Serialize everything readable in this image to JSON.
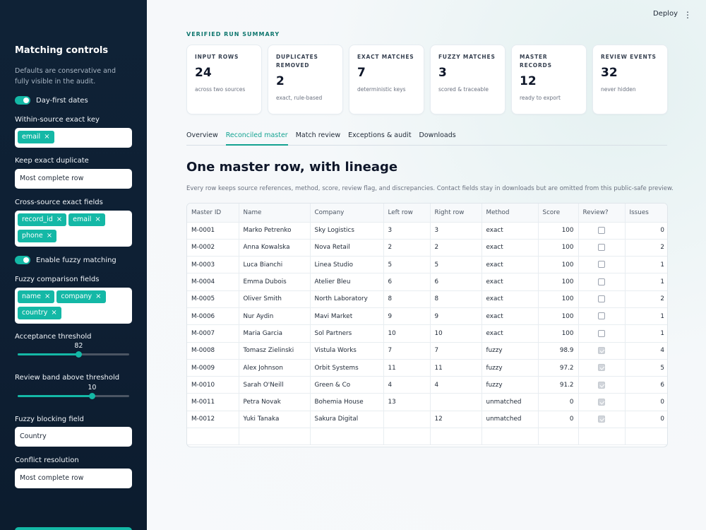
{
  "sidebar": {
    "title": "Matching controls",
    "description": "Defaults are conservative and fully visible in the audit.",
    "day_first": {
      "label": "Day-first dates",
      "on": true
    },
    "within_key": {
      "label": "Within-source exact key",
      "chips": [
        "email"
      ]
    },
    "keep_duplicate": {
      "label": "Keep exact duplicate",
      "value": "Most complete row"
    },
    "cross_fields": {
      "label": "Cross-source exact fields",
      "chips": [
        "record_id",
        "email",
        "phone"
      ]
    },
    "fuzzy_toggle": {
      "label": "Enable fuzzy matching",
      "on": true
    },
    "fuzzy_fields": {
      "label": "Fuzzy comparison fields",
      "chips": [
        "name",
        "company",
        "country"
      ]
    },
    "threshold": {
      "label": "Acceptance threshold",
      "value": "82",
      "fraction": 0.547
    },
    "review_band": {
      "label": "Review band above threshold",
      "value": "10",
      "fraction": 0.667
    },
    "blocking": {
      "label": "Fuzzy blocking field",
      "value": "Country"
    },
    "conflict": {
      "label": "Conflict resolution",
      "value": "Most complete row"
    }
  },
  "header": {
    "deploy": "Deploy",
    "menu_icon": "kebab-icon"
  },
  "summary": {
    "eyebrow": "VERIFIED RUN SUMMARY",
    "cards": [
      {
        "label": "INPUT ROWS",
        "value": "24",
        "sub": "across two sources"
      },
      {
        "label": "DUPLICATES REMOVED",
        "value": "2",
        "sub": "exact, rule-based"
      },
      {
        "label": "EXACT MATCHES",
        "value": "7",
        "sub": "deterministic keys"
      },
      {
        "label": "FUZZY MATCHES",
        "value": "3",
        "sub": "scored & traceable"
      },
      {
        "label": "MASTER RECORDS",
        "value": "12",
        "sub": "ready to export"
      },
      {
        "label": "REVIEW EVENTS",
        "value": "32",
        "sub": "never hidden"
      }
    ]
  },
  "tabs": [
    "Overview",
    "Reconciled master",
    "Match review",
    "Exceptions & audit",
    "Downloads"
  ],
  "active_tab": 1,
  "section": {
    "title": "One master row, with lineage",
    "subtitle": "Every row keeps source references, method, score, review flag, and discrepancies. Contact fields stay in downloads but are omitted from this public-safe preview."
  },
  "table": {
    "columns": [
      "Master ID",
      "Name",
      "Company",
      "Left row",
      "Right row",
      "Method",
      "Score",
      "Review?",
      "Issues"
    ],
    "rows": [
      [
        "M-0001",
        "Marko Petrenko",
        "Sky Logistics",
        "3",
        "3",
        "exact",
        "100",
        false,
        "0"
      ],
      [
        "M-0002",
        "Anna Kowalska",
        "Nova Retail",
        "2",
        "2",
        "exact",
        "100",
        false,
        "2"
      ],
      [
        "M-0003",
        "Luca Bianchi",
        "Linea Studio",
        "5",
        "5",
        "exact",
        "100",
        false,
        "1"
      ],
      [
        "M-0004",
        "Emma Dubois",
        "Atelier Bleu",
        "6",
        "6",
        "exact",
        "100",
        false,
        "1"
      ],
      [
        "M-0005",
        "Oliver Smith",
        "North Laboratory",
        "8",
        "8",
        "exact",
        "100",
        false,
        "2"
      ],
      [
        "M-0006",
        "Nur Aydin",
        "Mavi Market",
        "9",
        "9",
        "exact",
        "100",
        false,
        "1"
      ],
      [
        "M-0007",
        "Maria Garcia",
        "Sol Partners",
        "10",
        "10",
        "exact",
        "100",
        false,
        "1"
      ],
      [
        "M-0008",
        "Tomasz Zielinski",
        "Vistula Works",
        "7",
        "7",
        "fuzzy",
        "98.9",
        true,
        "4"
      ],
      [
        "M-0009",
        "Alex Johnson",
        "Orbit Systems",
        "11",
        "11",
        "fuzzy",
        "97.2",
        true,
        "5"
      ],
      [
        "M-0010",
        "Sarah O'Neill",
        "Green & Co",
        "4",
        "4",
        "fuzzy",
        "91.2",
        true,
        "6"
      ],
      [
        "M-0011",
        "Petra Novak",
        "Bohemia House",
        "13",
        "",
        "unmatched",
        "0",
        true,
        "0"
      ],
      [
        "M-0012",
        "Yuki Tanaka",
        "Sakura Digital",
        "",
        "12",
        "unmatched",
        "0",
        true,
        "0"
      ]
    ]
  },
  "colors": {
    "accent": "#14b8a6",
    "sidebar_bg": "#0f2236",
    "eyebrow": "#0f766e"
  }
}
